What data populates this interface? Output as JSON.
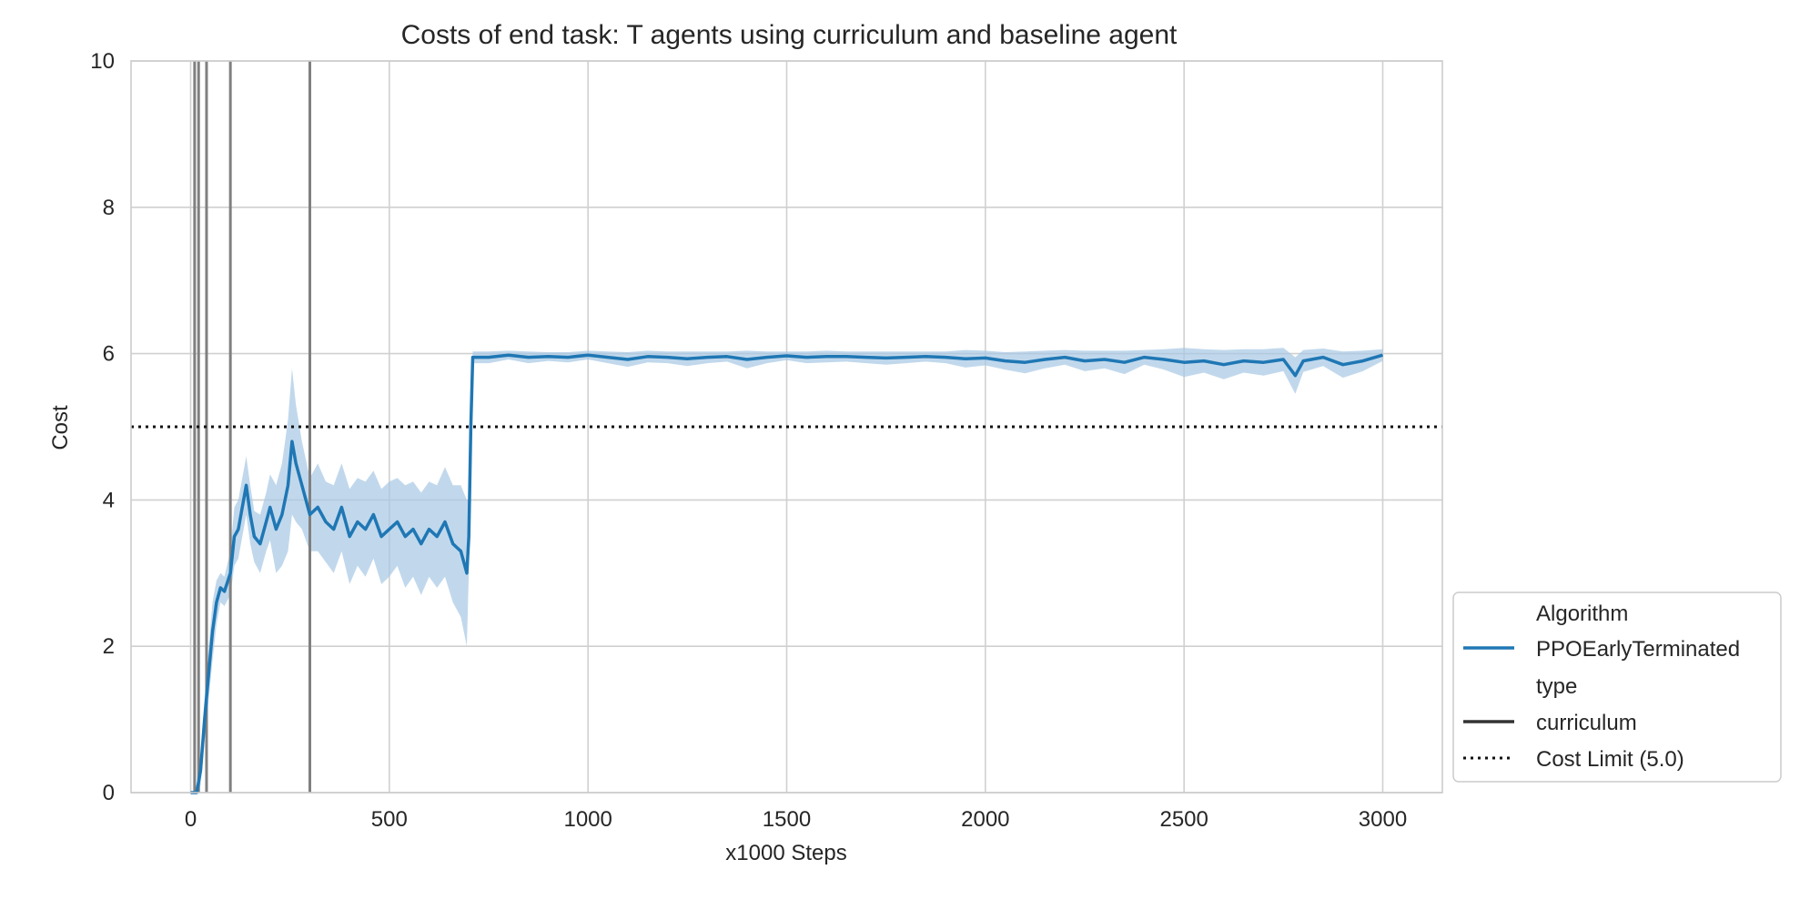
{
  "chart_data": {
    "type": "line",
    "title": "Costs of end task: T agents using curriculum and baseline agent",
    "xlabel": "x1000 Steps",
    "ylabel": "Cost",
    "xlim": [
      -150,
      3150
    ],
    "ylim": [
      0,
      10
    ],
    "xticks": [
      0,
      500,
      1000,
      1500,
      2000,
      2500,
      3000
    ],
    "yticks": [
      0,
      2,
      4,
      6,
      8,
      10
    ],
    "grid": true,
    "colors": {
      "series": "#1f77b4",
      "band": "#a6c8e4",
      "vlines": "#808080",
      "limit": "#111111",
      "grid": "#d0d0d0"
    },
    "series": [
      {
        "name": "PPOEarlyTerminated",
        "type_label": "curriculum",
        "x": [
          0,
          15,
          25,
          35,
          45,
          55,
          65,
          75,
          85,
          100,
          110,
          120,
          140,
          150,
          160,
          175,
          190,
          200,
          215,
          230,
          245,
          255,
          265,
          280,
          300,
          320,
          340,
          360,
          380,
          400,
          420,
          440,
          460,
          480,
          500,
          520,
          540,
          560,
          580,
          600,
          620,
          640,
          660,
          680,
          695,
          700,
          705,
          710,
          750,
          800,
          850,
          900,
          950,
          1000,
          1050,
          1100,
          1150,
          1200,
          1250,
          1300,
          1350,
          1400,
          1450,
          1500,
          1550,
          1600,
          1650,
          1700,
          1750,
          1800,
          1850,
          1900,
          1950,
          2000,
          2050,
          2100,
          2150,
          2200,
          2250,
          2300,
          2350,
          2400,
          2450,
          2500,
          2550,
          2600,
          2650,
          2700,
          2750,
          2780,
          2800,
          2850,
          2900,
          2950,
          3000
        ],
        "values": [
          0,
          0,
          0.3,
          1.0,
          1.6,
          2.2,
          2.6,
          2.8,
          2.75,
          3.0,
          3.5,
          3.6,
          4.2,
          3.8,
          3.5,
          3.4,
          3.7,
          3.9,
          3.6,
          3.8,
          4.2,
          4.8,
          4.5,
          4.2,
          3.8,
          3.9,
          3.7,
          3.6,
          3.9,
          3.5,
          3.7,
          3.6,
          3.8,
          3.5,
          3.6,
          3.7,
          3.5,
          3.6,
          3.4,
          3.6,
          3.5,
          3.7,
          3.4,
          3.3,
          3.0,
          3.5,
          5.0,
          5.95,
          5.95,
          5.98,
          5.95,
          5.96,
          5.95,
          5.98,
          5.95,
          5.92,
          5.96,
          5.95,
          5.93,
          5.95,
          5.96,
          5.92,
          5.95,
          5.97,
          5.95,
          5.96,
          5.96,
          5.95,
          5.94,
          5.95,
          5.96,
          5.95,
          5.93,
          5.94,
          5.9,
          5.88,
          5.92,
          5.95,
          5.9,
          5.92,
          5.88,
          5.95,
          5.92,
          5.88,
          5.9,
          5.85,
          5.9,
          5.88,
          5.92,
          5.7,
          5.9,
          5.95,
          5.85,
          5.9,
          5.98
        ],
        "band": [
          0,
          0,
          0.2,
          0.3,
          0.35,
          0.4,
          0.3,
          0.2,
          0.2,
          0.3,
          0.4,
          0.4,
          0.4,
          0.4,
          0.35,
          0.4,
          0.4,
          0.45,
          0.6,
          0.7,
          0.9,
          1.0,
          0.8,
          0.6,
          0.5,
          0.6,
          0.55,
          0.6,
          0.6,
          0.65,
          0.6,
          0.65,
          0.6,
          0.65,
          0.65,
          0.6,
          0.7,
          0.65,
          0.7,
          0.65,
          0.7,
          0.75,
          0.8,
          0.9,
          1.0,
          0.5,
          0.1,
          0.08,
          0.08,
          0.06,
          0.08,
          0.06,
          0.07,
          0.06,
          0.08,
          0.1,
          0.08,
          0.08,
          0.1,
          0.08,
          0.07,
          0.12,
          0.08,
          0.06,
          0.08,
          0.08,
          0.07,
          0.08,
          0.09,
          0.08,
          0.07,
          0.08,
          0.12,
          0.1,
          0.12,
          0.15,
          0.12,
          0.1,
          0.14,
          0.12,
          0.16,
          0.1,
          0.14,
          0.2,
          0.16,
          0.2,
          0.16,
          0.18,
          0.16,
          0.25,
          0.15,
          0.12,
          0.18,
          0.14,
          0.08
        ]
      }
    ],
    "cost_limit": 5.0,
    "vertical_lines": [
      10,
      20,
      40,
      100,
      300
    ],
    "legend": {
      "placement": "outside-right-bottom",
      "entries": [
        {
          "label": "Algorithm",
          "style": "none"
        },
        {
          "label": "PPOEarlyTerminated",
          "style": "blue-line"
        },
        {
          "label": "type",
          "style": "none"
        },
        {
          "label": "curriculum",
          "style": "dark-line"
        },
        {
          "label": "Cost Limit (5.0)",
          "style": "dotted-line"
        }
      ]
    }
  }
}
